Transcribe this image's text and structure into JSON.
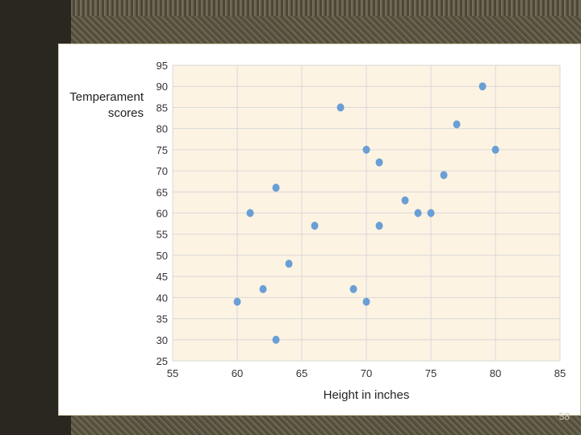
{
  "slide": {
    "page_number": "58"
  },
  "chart_data": {
    "type": "scatter",
    "xlabel": "Height in inches",
    "ylabel": [
      "Temperament",
      "scores"
    ],
    "xlim": [
      55,
      85
    ],
    "ylim": [
      25,
      95
    ],
    "xticks": [
      55,
      60,
      65,
      70,
      75,
      80,
      85
    ],
    "yticks": [
      25,
      30,
      35,
      40,
      45,
      50,
      55,
      60,
      65,
      70,
      75,
      80,
      85,
      90,
      95
    ],
    "grid": true,
    "point_color": "#6a9fd6",
    "plot_background": "#fdf3e3",
    "points": [
      {
        "x": 60,
        "y": 39
      },
      {
        "x": 61,
        "y": 60
      },
      {
        "x": 62,
        "y": 42
      },
      {
        "x": 63,
        "y": 30
      },
      {
        "x": 63,
        "y": 66
      },
      {
        "x": 64,
        "y": 48
      },
      {
        "x": 66,
        "y": 57
      },
      {
        "x": 68,
        "y": 85
      },
      {
        "x": 69,
        "y": 42
      },
      {
        "x": 70,
        "y": 39
      },
      {
        "x": 70,
        "y": 75
      },
      {
        "x": 71,
        "y": 72
      },
      {
        "x": 71,
        "y": 57
      },
      {
        "x": 73,
        "y": 63
      },
      {
        "x": 74,
        "y": 60
      },
      {
        "x": 75,
        "y": 60
      },
      {
        "x": 76,
        "y": 69
      },
      {
        "x": 77,
        "y": 81
      },
      {
        "x": 79,
        "y": 90
      },
      {
        "x": 80,
        "y": 75
      }
    ]
  }
}
